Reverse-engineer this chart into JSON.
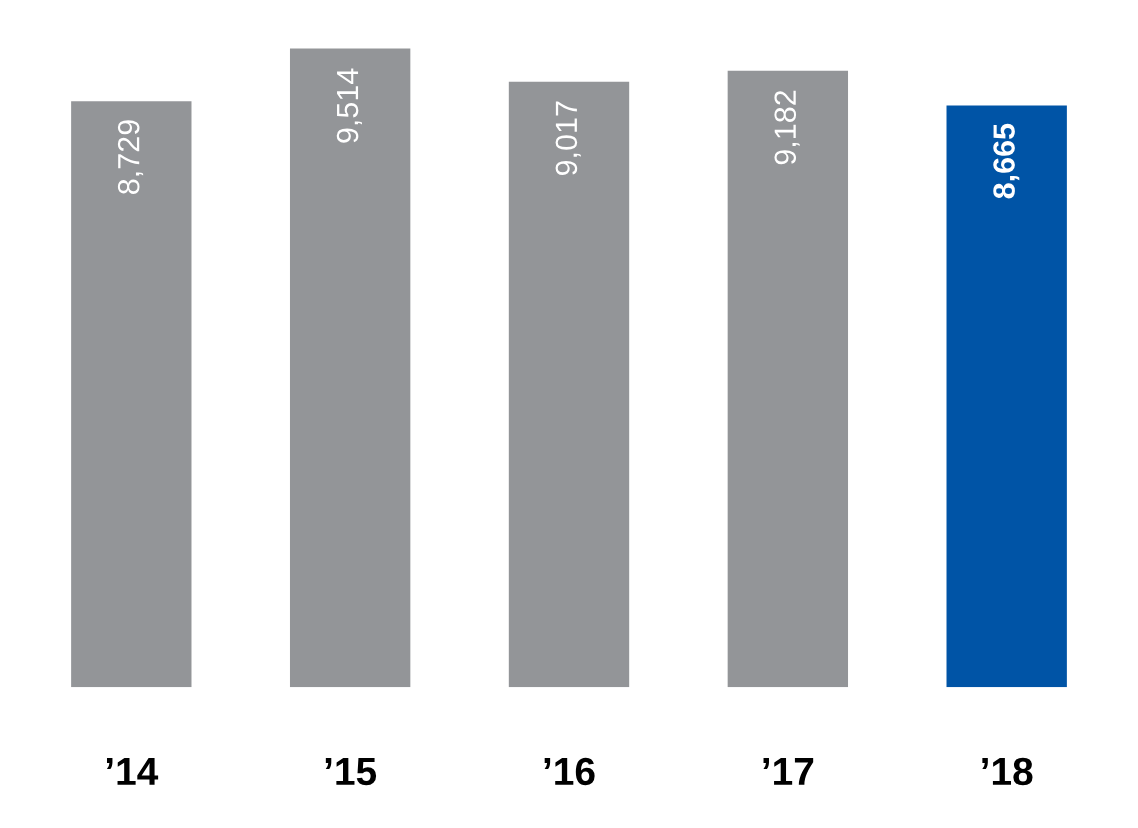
{
  "chart_data": {
    "type": "bar",
    "categories": [
      "’14",
      "’15",
      "’16",
      "’17",
      "’18"
    ],
    "values": [
      8729,
      9514,
      9017,
      9182,
      8665
    ],
    "colors": [
      "#939598",
      "#939598",
      "#939598",
      "#939598",
      "#0054a6"
    ],
    "value_labels": [
      "8,729",
      "9,514",
      "9,017",
      "9,182",
      "8,665"
    ]
  }
}
